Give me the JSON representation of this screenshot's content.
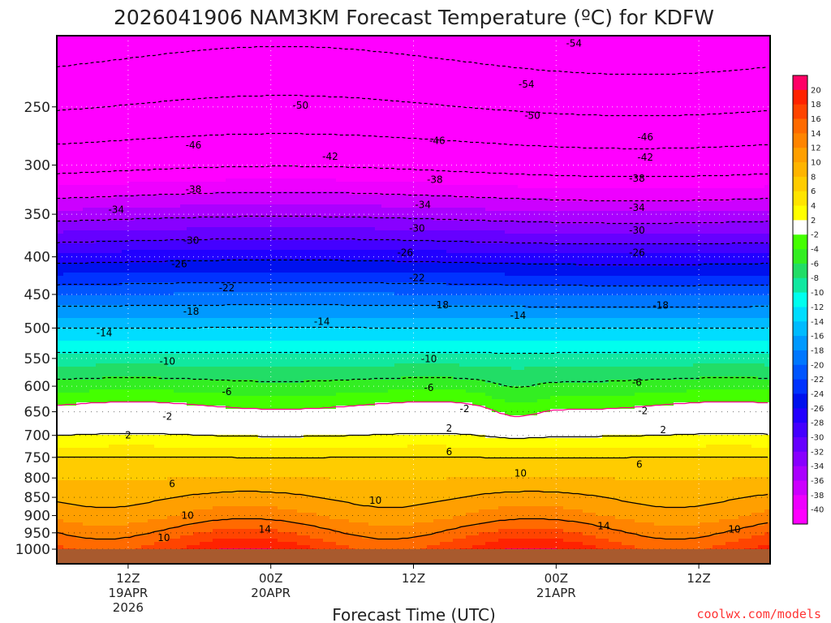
{
  "chart_data": {
    "type": "heatmap",
    "title": "2026041906 NAM3KM Forecast Temperature (ºC) for KDFW",
    "xlabel": "Forecast Time (UTC)",
    "ylabel": "",
    "credit": "coolwx.com/models",
    "y_axis": {
      "scale": "log-pressure",
      "inverted": true,
      "ticks": [
        250,
        300,
        350,
        400,
        450,
        500,
        550,
        600,
        650,
        700,
        750,
        800,
        850,
        900,
        950,
        1000
      ],
      "range": [
        1000,
        200
      ]
    },
    "x_axis": {
      "range_hours": [
        0,
        60
      ],
      "ticks": [
        {
          "hour": 6,
          "lines": [
            "12Z",
            "19APR",
            "2026"
          ]
        },
        {
          "hour": 18,
          "lines": [
            "00Z",
            "20APR"
          ]
        },
        {
          "hour": 30,
          "lines": [
            "12Z"
          ]
        },
        {
          "hour": 42,
          "lines": [
            "00Z",
            "21APR"
          ]
        },
        {
          "hour": 54,
          "lines": [
            "12Z"
          ]
        }
      ]
    },
    "colorbar": {
      "labels": [
        20,
        18,
        16,
        14,
        12,
        10,
        8,
        6,
        4,
        2,
        -2,
        -4,
        -6,
        -8,
        -10,
        -12,
        -14,
        -16,
        -18,
        -20,
        -22,
        -24,
        -26,
        -28,
        -30,
        -32,
        -34,
        -36,
        -38,
        -40
      ],
      "colors": [
        "#ff0066",
        "#ff2200",
        "#ff4400",
        "#ff6a00",
        "#ff8400",
        "#ff9f00",
        "#ffb400",
        "#ffcc00",
        "#ffe400",
        "#ffff00",
        "#ffffff",
        "#44ff00",
        "#33ee22",
        "#22dd66",
        "#11e8a0",
        "#00ffee",
        "#00ddff",
        "#00bbff",
        "#0099ff",
        "#0077ff",
        "#0055ff",
        "#0033ff",
        "#0011ee",
        "#2200ff",
        "#4400ff",
        "#6600ff",
        "#8800ff",
        "#aa00ff",
        "#cc00ff",
        "#ee00ff",
        "#ff00ff"
      ]
    },
    "profile": {
      "pressure_hpa": [
        200,
        250,
        300,
        350,
        400,
        450,
        500,
        550,
        600,
        650,
        700,
        750,
        800,
        850,
        900,
        950,
        1000
      ],
      "temperature_c": [
        -56,
        -50,
        -43,
        -35,
        -27,
        -20,
        -14,
        -9,
        -5,
        -1,
        2,
        6,
        8,
        10,
        12,
        15,
        18
      ]
    },
    "contour_labels": [
      {
        "value": "-54",
        "hour": 43.5,
        "p": 205
      },
      {
        "value": "-54",
        "hour": 39.5,
        "p": 233
      },
      {
        "value": "-50",
        "hour": 20.5,
        "p": 249
      },
      {
        "value": "-50",
        "hour": 40.0,
        "p": 257
      },
      {
        "value": "-46",
        "hour": 11.5,
        "p": 282
      },
      {
        "value": "-46",
        "hour": 32.0,
        "p": 278
      },
      {
        "value": "-46",
        "hour": 49.5,
        "p": 275
      },
      {
        "value": "-42",
        "hour": 23.0,
        "p": 292
      },
      {
        "value": "-42",
        "hour": 49.5,
        "p": 293
      },
      {
        "value": "-38",
        "hour": 11.5,
        "p": 324
      },
      {
        "value": "-38",
        "hour": 31.8,
        "p": 314
      },
      {
        "value": "-38",
        "hour": 48.8,
        "p": 313
      },
      {
        "value": "-34",
        "hour": 5.0,
        "p": 345
      },
      {
        "value": "-34",
        "hour": 30.8,
        "p": 340
      },
      {
        "value": "-34",
        "hour": 48.8,
        "p": 343
      },
      {
        "value": "-30",
        "hour": 11.3,
        "p": 380
      },
      {
        "value": "-30",
        "hour": 30.3,
        "p": 366
      },
      {
        "value": "-30",
        "hour": 48.8,
        "p": 368
      },
      {
        "value": "-26",
        "hour": 10.3,
        "p": 409
      },
      {
        "value": "-26",
        "hour": 29.3,
        "p": 395
      },
      {
        "value": "-26",
        "hour": 48.8,
        "p": 395
      },
      {
        "value": "-22",
        "hour": 14.3,
        "p": 441
      },
      {
        "value": "-22",
        "hour": 30.3,
        "p": 427
      },
      {
        "value": "-18",
        "hour": 11.3,
        "p": 475
      },
      {
        "value": "-18",
        "hour": 32.3,
        "p": 465
      },
      {
        "value": "-18",
        "hour": 50.8,
        "p": 466
      },
      {
        "value": "-14",
        "hour": 4.0,
        "p": 508
      },
      {
        "value": "-14",
        "hour": 22.3,
        "p": 490
      },
      {
        "value": "-14",
        "hour": 38.8,
        "p": 481
      },
      {
        "value": "-10",
        "hour": 9.3,
        "p": 555
      },
      {
        "value": "-10",
        "hour": 31.3,
        "p": 551
      },
      {
        "value": "-6",
        "hour": 14.3,
        "p": 611
      },
      {
        "value": "-6",
        "hour": 31.3,
        "p": 603
      },
      {
        "value": "-6",
        "hour": 48.8,
        "p": 593
      },
      {
        "value": "-2",
        "hour": 9.3,
        "p": 660
      },
      {
        "value": "-2",
        "hour": 34.3,
        "p": 644
      },
      {
        "value": "-2",
        "hour": 49.3,
        "p": 648
      },
      {
        "value": "2",
        "hour": 6.0,
        "p": 700
      },
      {
        "value": "2",
        "hour": 33.0,
        "p": 685
      },
      {
        "value": "2",
        "hour": 51.0,
        "p": 688
      },
      {
        "value": "6",
        "hour": 33.0,
        "p": 737
      },
      {
        "value": "6",
        "hour": 9.7,
        "p": 815
      },
      {
        "value": "6",
        "hour": 49.0,
        "p": 767
      },
      {
        "value": "10",
        "hour": 39.0,
        "p": 788
      },
      {
        "value": "10",
        "hour": 26.8,
        "p": 858
      },
      {
        "value": "10",
        "hour": 11.0,
        "p": 900
      },
      {
        "value": "10",
        "hour": 9.0,
        "p": 965
      },
      {
        "value": "10",
        "hour": 57.0,
        "p": 940
      },
      {
        "value": "14",
        "hour": 17.5,
        "p": 940
      },
      {
        "value": "14",
        "hour": 46.0,
        "p": 930
      }
    ]
  }
}
